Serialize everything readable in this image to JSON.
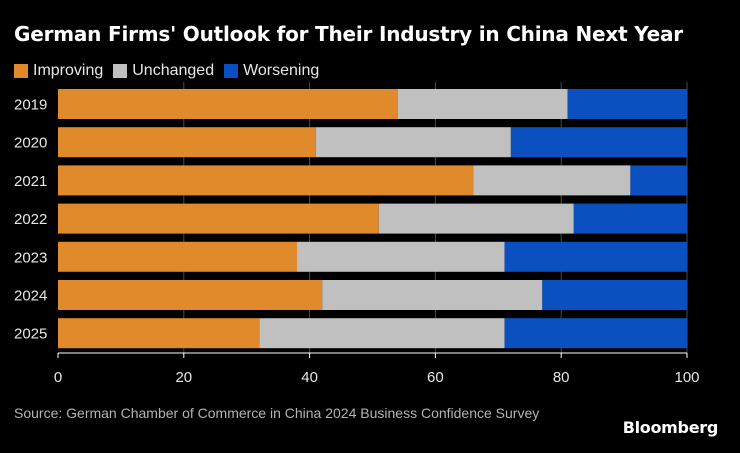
{
  "chart_data": {
    "type": "bar",
    "orientation": "horizontal",
    "stacked": true,
    "title": "German Firms' Outlook for Their Industry in China Next Year",
    "categories": [
      "2019",
      "2020",
      "2021",
      "2022",
      "2023",
      "2024",
      "2025"
    ],
    "series": [
      {
        "name": "Improving",
        "color": "#e08a2c",
        "values": [
          54,
          41,
          66,
          51,
          38,
          42,
          32
        ]
      },
      {
        "name": "Unchanged",
        "color": "#c0c0c0",
        "values": [
          27,
          31,
          25,
          31,
          33,
          35,
          39
        ]
      },
      {
        "name": "Worsening",
        "color": "#0a50c0",
        "values": [
          19,
          28,
          9,
          18,
          29,
          23,
          29
        ]
      }
    ],
    "xlim": [
      0,
      100
    ],
    "xticks": [
      "0",
      "20",
      "40",
      "60",
      "80",
      "100"
    ],
    "xlabel": "",
    "ylabel": "",
    "legend_position": "top-left",
    "grid": true
  },
  "source": "Source: German Chamber of Commerce in China 2024 Business Confidence Survey",
  "brand": "Bloomberg"
}
